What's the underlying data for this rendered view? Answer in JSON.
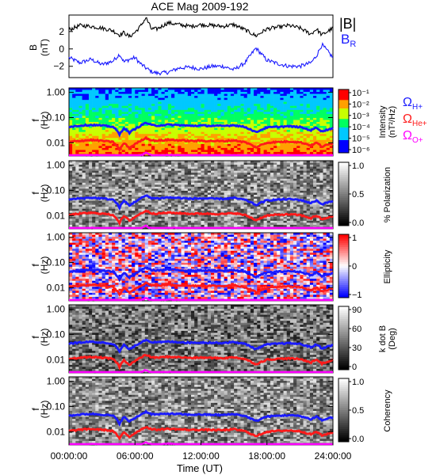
{
  "title": "ACE Mag 2009-192",
  "colors": {
    "magnitude": "#000000",
    "radial": "#1a1aff",
    "h_plus": "#1a1aff",
    "he_plus": "#ff1a1a",
    "o_plus": "#ff00ff"
  },
  "top_panel": {
    "ylabel": "B\n(nT)",
    "ylabel_lines": [
      "B",
      "(nT)"
    ],
    "yticks": [
      "2",
      "0",
      "−2"
    ],
    "legend": {
      "magnitude": "|B|",
      "radial_main": "B",
      "radial_sub": "R"
    }
  },
  "species_legend": [
    {
      "symbol": "Ω",
      "sub": "H+",
      "color": "#1a1aff"
    },
    {
      "symbol": "Ω",
      "sub": "He+",
      "color": "#ff1a1a"
    },
    {
      "symbol": "Ω",
      "sub": "O+",
      "color": "#ff00ff"
    }
  ],
  "spectrogram_ylabel": [
    "f",
    "(Hz)"
  ],
  "spectrogram_yticks": [
    "1.00",
    "0.10",
    "0.01"
  ],
  "panels": [
    {
      "id": "intensity",
      "colorbar": "rainbow",
      "cb_ticks": [
        "10⁻¹",
        "10⁻²",
        "10⁻³",
        "10⁻⁴",
        "10⁻⁵",
        "10⁻⁶"
      ],
      "cb_label": [
        "Intensity",
        "(nT²/Hz)"
      ]
    },
    {
      "id": "polarization",
      "colorbar": "gray",
      "cb_ticks": [
        "1.0",
        "0.5",
        "0.0"
      ],
      "cb_label": [
        "% Polarization"
      ]
    },
    {
      "id": "ellipticity",
      "colorbar": "bwr",
      "cb_ticks": [
        "1",
        "0",
        "−1"
      ],
      "cb_label": [
        "Ellipticity"
      ]
    },
    {
      "id": "kdotb",
      "colorbar": "gray",
      "cb_ticks": [
        "90",
        "60",
        "30",
        "0"
      ],
      "cb_label": [
        "k dot B",
        "(Deg)"
      ]
    },
    {
      "id": "coherency",
      "colorbar": "gray",
      "cb_ticks": [
        "1.0",
        "0.5",
        "0.0"
      ],
      "cb_label": [
        "Coherency"
      ]
    }
  ],
  "x_axis": {
    "tick_labels": [
      "00:00:00",
      "06:00:00",
      "12:00:00",
      "18:00:00",
      "24:00:00"
    ],
    "label": "Time (UT)"
  },
  "chart_data": {
    "type": "line",
    "title": "ACE Mag 2009-192",
    "x": [
      0,
      1,
      2,
      3,
      4,
      4.6,
      5,
      5.5,
      6,
      6.5,
      7,
      7.5,
      8,
      9,
      10,
      11,
      12,
      13,
      14,
      15,
      16,
      17,
      18,
      19,
      20,
      21,
      22,
      22.5,
      23,
      24
    ],
    "xlim": [
      0,
      24
    ],
    "xlabel": "Time (UT)",
    "series": [
      {
        "name": "|B|",
        "panel": "top",
        "values": [
          2.2,
          2.7,
          2.6,
          2.4,
          2.1,
          1.6,
          1.9,
          1.4,
          1.9,
          2.6,
          3.6,
          2.3,
          2.3,
          3.0,
          2.8,
          2.6,
          2.8,
          2.7,
          2.6,
          2.8,
          2.2,
          1.5,
          2.3,
          2.5,
          2.7,
          2.4,
          1.7,
          2.3,
          1.6,
          2.4
        ]
      },
      {
        "name": "B_R",
        "panel": "top",
        "values": [
          -1.0,
          -1.6,
          -1.2,
          -1.8,
          -1.4,
          -0.6,
          -1.5,
          -1.2,
          -1.0,
          -1.7,
          -2.2,
          -2.6,
          -2.8,
          -2.7,
          -2.2,
          -2.1,
          -2.3,
          -2.0,
          -2.0,
          -2.4,
          -1.6,
          0.1,
          -1.3,
          -1.7,
          -2.0,
          -2.0,
          -1.6,
          -0.8,
          0.5,
          -1.0
        ]
      },
      {
        "name": "ΩH+",
        "panel": "spectrograms",
        "values": [
          0.043,
          0.048,
          0.051,
          0.048,
          0.043,
          0.021,
          0.038,
          0.025,
          0.035,
          0.047,
          0.062,
          0.05,
          0.048,
          0.052,
          0.05,
          0.047,
          0.048,
          0.047,
          0.046,
          0.05,
          0.042,
          0.026,
          0.04,
          0.043,
          0.045,
          0.042,
          0.031,
          0.04,
          0.028,
          0.038
        ]
      },
      {
        "name": "ΩHe+",
        "panel": "spectrograms",
        "values": [
          0.0107,
          0.012,
          0.0128,
          0.012,
          0.0107,
          0.0052,
          0.0095,
          0.0062,
          0.0088,
          0.0118,
          0.0155,
          0.0125,
          0.012,
          0.013,
          0.0125,
          0.0118,
          0.012,
          0.0118,
          0.0115,
          0.0125,
          0.0105,
          0.0065,
          0.01,
          0.0108,
          0.0112,
          0.0105,
          0.0078,
          0.01,
          0.007,
          0.0095
        ]
      },
      {
        "name": "ΩO+",
        "panel": "spectrograms",
        "values": [
          0.0027,
          0.003,
          0.0032,
          0.003,
          0.0027,
          0.0013,
          0.0024,
          0.0016,
          0.0022,
          0.003,
          0.0039,
          0.0031,
          0.003,
          0.0033,
          0.0031,
          0.003,
          0.003,
          0.003,
          0.0029,
          0.0031,
          0.0026,
          0.0016,
          0.0025,
          0.0027,
          0.0028,
          0.0026,
          0.002,
          0.0025,
          0.0018,
          0.0024
        ]
      }
    ],
    "top_ylim": [
      -3.3,
      3.9
    ],
    "spectrogram_ylim": [
      0.003,
      1.5
    ],
    "spectrogram_scale": "log"
  }
}
